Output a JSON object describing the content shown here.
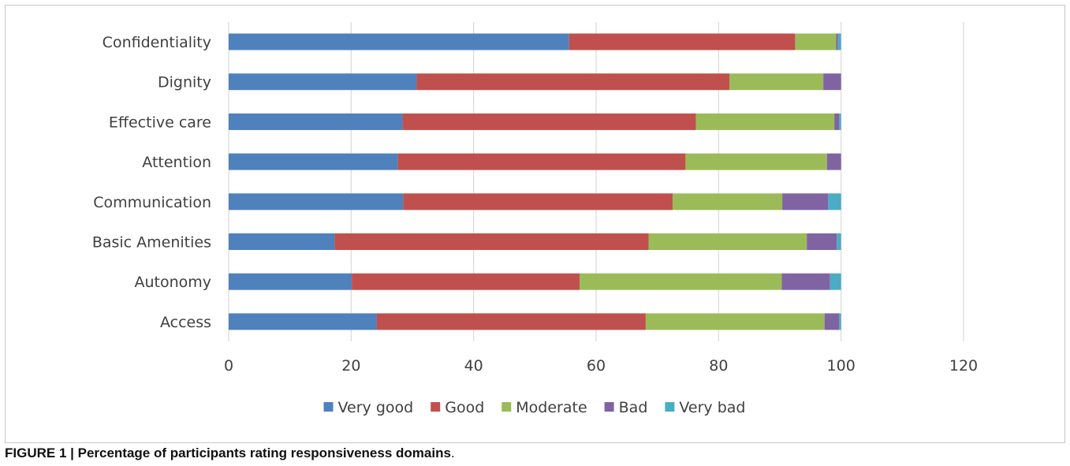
{
  "chart_data": {
    "type": "bar",
    "orientation": "horizontal",
    "stacked": true,
    "categories": [
      "Confidentiality",
      "Dignity",
      "Effective care",
      "Attention",
      "Communication",
      "Basic Amenities",
      "Autonomy",
      "Access"
    ],
    "series": [
      {
        "name": "Very good",
        "color": "#4f81bd",
        "values": [
          55.6,
          30.7,
          28.4,
          27.6,
          28.5,
          17.3,
          20.1,
          24.2
        ]
      },
      {
        "name": "Good",
        "color": "#c0504d",
        "values": [
          36.9,
          51.1,
          47.9,
          47.0,
          44.0,
          51.3,
          37.2,
          43.9
        ]
      },
      {
        "name": "Moderate",
        "color": "#9bbb59",
        "values": [
          6.7,
          15.3,
          22.6,
          23.1,
          17.9,
          25.8,
          33.0,
          29.2
        ]
      },
      {
        "name": "Bad",
        "color": "#8064a2",
        "values": [
          0.3,
          2.9,
          0.8,
          2.3,
          7.5,
          4.9,
          7.9,
          2.4
        ]
      },
      {
        "name": "Very bad",
        "color": "#4bacc6",
        "values": [
          0.5,
          0.0,
          0.3,
          0.0,
          2.1,
          0.7,
          1.8,
          0.3
        ]
      }
    ],
    "xlim": [
      0,
      120
    ],
    "xticks": [
      "0",
      "20",
      "40",
      "60",
      "80",
      "100",
      "120"
    ],
    "grid": true,
    "legend_position": "bottom"
  },
  "caption": {
    "bold": "FIGURE 1 | Percentage of participants rating responsiveness domains",
    "tail": "."
  }
}
